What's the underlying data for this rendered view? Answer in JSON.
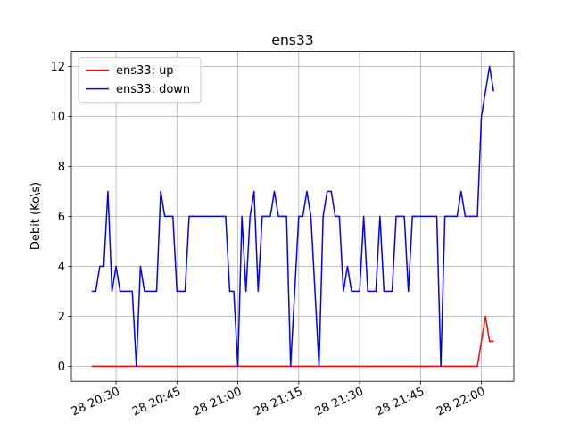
{
  "chart_data": {
    "type": "line",
    "title": "ens33",
    "ylabel": "Debit (Ko\\s)",
    "x": [
      "28 20:24",
      "28 20:25",
      "28 20:26",
      "28 20:27",
      "28 20:28",
      "28 20:29",
      "28 20:30",
      "28 20:31",
      "28 20:32",
      "28 20:33",
      "28 20:34",
      "28 20:35",
      "28 20:36",
      "28 20:37",
      "28 20:38",
      "28 20:39",
      "28 20:40",
      "28 20:41",
      "28 20:42",
      "28 20:43",
      "28 20:44",
      "28 20:45",
      "28 20:46",
      "28 20:47",
      "28 20:48",
      "28 20:49",
      "28 20:50",
      "28 20:51",
      "28 20:52",
      "28 20:53",
      "28 20:54",
      "28 20:55",
      "28 20:56",
      "28 20:57",
      "28 20:58",
      "28 20:59",
      "28 21:00",
      "28 21:01",
      "28 21:02",
      "28 21:03",
      "28 21:04",
      "28 21:05",
      "28 21:06",
      "28 21:07",
      "28 21:08",
      "28 21:09",
      "28 21:10",
      "28 21:11",
      "28 21:12",
      "28 21:13",
      "28 21:14",
      "28 21:15",
      "28 21:16",
      "28 21:17",
      "28 21:18",
      "28 21:19",
      "28 21:20",
      "28 21:21",
      "28 21:22",
      "28 21:23",
      "28 21:24",
      "28 21:25",
      "28 21:26",
      "28 21:27",
      "28 21:28",
      "28 21:29",
      "28 21:30",
      "28 21:31",
      "28 21:32",
      "28 21:33",
      "28 21:34",
      "28 21:35",
      "28 21:36",
      "28 21:37",
      "28 21:38",
      "28 21:39",
      "28 21:40",
      "28 21:41",
      "28 21:42",
      "28 21:43",
      "28 21:44",
      "28 21:45",
      "28 21:46",
      "28 21:47",
      "28 21:48",
      "28 21:49",
      "28 21:50",
      "28 21:51",
      "28 21:52",
      "28 21:53",
      "28 21:54",
      "28 21:55",
      "28 21:56",
      "28 21:57",
      "28 21:58",
      "28 21:59",
      "28 22:00",
      "28 22:01",
      "28 22:02",
      "28 22:03"
    ],
    "series": [
      {
        "name": "ens33: up",
        "color": "#ff0000",
        "values": [
          0,
          0,
          0,
          0,
          0,
          0,
          0,
          0,
          0,
          0,
          0,
          0,
          0,
          0,
          0,
          0,
          0,
          0,
          0,
          0,
          0,
          0,
          0,
          0,
          0,
          0,
          0,
          0,
          0,
          0,
          0,
          0,
          0,
          0,
          0,
          0,
          0,
          0,
          0,
          0,
          0,
          0,
          0,
          0,
          0,
          0,
          0,
          0,
          0,
          0,
          0,
          0,
          0,
          0,
          0,
          0,
          0,
          0,
          0,
          0,
          0,
          0,
          0,
          0,
          0,
          0,
          0,
          0,
          0,
          0,
          0,
          0,
          0,
          0,
          0,
          0,
          0,
          0,
          0,
          0,
          0,
          0,
          0,
          0,
          0,
          0,
          0,
          0,
          0,
          0,
          0,
          0,
          0,
          0,
          0,
          0,
          1,
          2,
          1,
          1
        ]
      },
      {
        "name": "ens33: down",
        "color": "#0000ff",
        "values": [
          3,
          3,
          4,
          4,
          7,
          3,
          4,
          3,
          3,
          3,
          3,
          0,
          4,
          3,
          3,
          3,
          3,
          7,
          6,
          6,
          6,
          3,
          3,
          3,
          6,
          6,
          6,
          6,
          6,
          6,
          6,
          6,
          6,
          6,
          3,
          3,
          0,
          6,
          3,
          6,
          7,
          3,
          6,
          6,
          6,
          7,
          6,
          6,
          6,
          0,
          3,
          6,
          6,
          7,
          6,
          3,
          0,
          6,
          7,
          7,
          6,
          6,
          3,
          4,
          3,
          3,
          3,
          6,
          3,
          3,
          3,
          6,
          3,
          3,
          3,
          6,
          6,
          6,
          3,
          6,
          6,
          6,
          6,
          6,
          6,
          6,
          0,
          6,
          6,
          6,
          6,
          7,
          6,
          6,
          6,
          6,
          10,
          11,
          12,
          11
        ]
      }
    ],
    "xlim": [
      "28 20:19",
      "28 22:08"
    ],
    "xticks": [
      "28 20:30",
      "28 20:45",
      "28 21:00",
      "28 21:15",
      "28 21:30",
      "28 21:45",
      "28 22:00"
    ],
    "ylim": [
      -0.6,
      12.6
    ],
    "yticks": [
      0,
      2,
      4,
      6,
      8,
      10,
      12
    ],
    "grid": true,
    "legend": "upper left"
  }
}
